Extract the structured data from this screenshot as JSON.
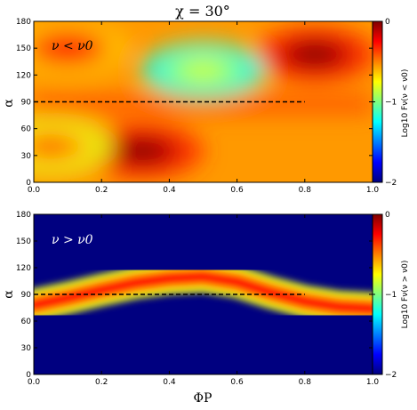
{
  "title": "χ = 30°",
  "chart_data": [
    {
      "type": "heatmap",
      "panel": "top",
      "annotation": "ν < ν0",
      "xlabel": "",
      "ylabel": "α",
      "xlim": [
        0.0,
        1.0
      ],
      "ylim": [
        0,
        180
      ],
      "xticks": [
        "0.0",
        "0.2",
        "0.4",
        "0.6",
        "0.8",
        "1.0"
      ],
      "yticks": [
        "0",
        "30",
        "60",
        "90",
        "120",
        "150",
        "180"
      ],
      "colorbar": {
        "label": "Log10 Fν(ν < ν0)",
        "range": [
          -2,
          0
        ],
        "ticks": [
          "0",
          "−1",
          "−2"
        ]
      },
      "dashed_line_alpha": 90,
      "background_level": -0.55,
      "blobs": [
        {
          "x": 0.32,
          "y": 35,
          "value": 0.0
        },
        {
          "x": 0.83,
          "y": 143,
          "value": 0.0
        },
        {
          "x": 0.1,
          "y": 150,
          "value": -0.28
        },
        {
          "x": 0.5,
          "y": 125,
          "value": -0.85
        },
        {
          "x": 0.05,
          "y": 40,
          "value": -0.45
        }
      ]
    },
    {
      "type": "heatmap",
      "panel": "bottom",
      "annotation": "ν > ν0",
      "xlabel": "ΦP",
      "ylabel": "α",
      "xlim": [
        0.0,
        1.0
      ],
      "ylim": [
        0,
        180
      ],
      "xticks": [
        "0.0",
        "0.2",
        "0.4",
        "0.6",
        "0.8",
        "1.0"
      ],
      "yticks": [
        "0",
        "30",
        "60",
        "90",
        "120",
        "150",
        "180"
      ],
      "colorbar": {
        "label": "Log10 Fν(ν > ν0)",
        "range": [
          -2,
          0
        ],
        "ticks": [
          "0",
          "−1",
          "−2"
        ]
      },
      "dashed_line_alpha": 90,
      "background_level": -2.0,
      "ridge": {
        "x": [
          0.0,
          0.1,
          0.2,
          0.3,
          0.4,
          0.5,
          0.6,
          0.7,
          0.8,
          0.9,
          1.0
        ],
        "y": [
          78,
          86,
          95,
          103,
          108,
          110,
          104,
          92,
          82,
          76,
          74
        ],
        "value": -0.25
      }
    }
  ]
}
